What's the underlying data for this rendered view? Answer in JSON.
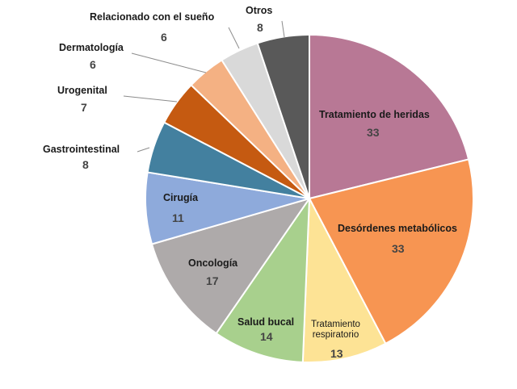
{
  "chart_data": {
    "type": "pie",
    "title": "",
    "legend": "none",
    "slices": [
      {
        "name": "Tratamiento de heridas",
        "value": 33,
        "color": "#b87895"
      },
      {
        "name": "Desórdenes metabólicos",
        "value": 33,
        "color": "#f79552"
      },
      {
        "name": "Tratamiento respiratorio",
        "value": 13,
        "color": "#fde395"
      },
      {
        "name": "Salud bucal",
        "value": 14,
        "color": "#a8d08d"
      },
      {
        "name": "Oncología",
        "value": 17,
        "color": "#aeaaaa"
      },
      {
        "name": "Cirugía",
        "value": 11,
        "color": "#8eaadb"
      },
      {
        "name": "Gastrointestinal",
        "value": 8,
        "color": "#43809f"
      },
      {
        "name": "Urogenital",
        "value": 7,
        "color": "#c55a11"
      },
      {
        "name": "Dermatología",
        "value": 6,
        "color": "#f4b183"
      },
      {
        "name": "Relacionado con el sueño",
        "value": 6,
        "color": "#d9d9d9"
      },
      {
        "name": "Otros",
        "value": 8,
        "color": "#595959"
      }
    ],
    "labels": {
      "heridas": {
        "name": "Tratamiento de heridas",
        "value": "33"
      },
      "metabolicos": {
        "name": "Desórdenes metabólicos",
        "value": "33"
      },
      "respiratorio": {
        "name_line1": "Tratamiento",
        "name_line2": "respiratorio",
        "value": "13"
      },
      "bucal": {
        "name": "Salud bucal",
        "value": "14"
      },
      "oncologia": {
        "name": "Oncología",
        "value": "17"
      },
      "cirugia": {
        "name": "Cirugía",
        "value": "11"
      },
      "gastro": {
        "name": "Gastrointestinal",
        "value": "8"
      },
      "urogenital": {
        "name": "Urogenital",
        "value": "7"
      },
      "dermatologia": {
        "name": "Dermatología",
        "value": "6"
      },
      "sueno": {
        "name": "Relacionado con el sueño",
        "value": "6"
      },
      "otros": {
        "name": "Otros",
        "value": "8"
      }
    }
  }
}
